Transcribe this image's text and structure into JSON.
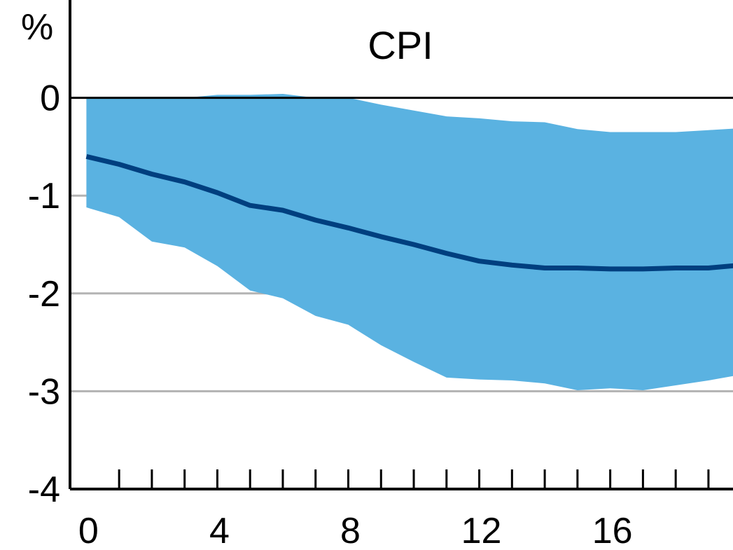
{
  "chart_data": {
    "type": "line",
    "title": "CPI",
    "ylabel": "%",
    "xlabel": "",
    "xlim": [
      -0.5,
      19.75
    ],
    "ylim": [
      -4,
      1
    ],
    "x_ticks": [
      0,
      4,
      8,
      12,
      16
    ],
    "x_minor_ticks": [
      1,
      2,
      3,
      4,
      5,
      6,
      7,
      8,
      9,
      10,
      11,
      12,
      13,
      14,
      15,
      16,
      17,
      18,
      19
    ],
    "y_ticks": [
      0,
      -1,
      -2,
      -3,
      -4
    ],
    "grid": "horizontal",
    "x": [
      0,
      1,
      2,
      3,
      4,
      5,
      6,
      7,
      8,
      9,
      10,
      11,
      12,
      13,
      14,
      15,
      16,
      17,
      18,
      19,
      20
    ],
    "series": [
      {
        "type": "line",
        "values": [
          -0.6,
          -0.68,
          -0.78,
          -0.86,
          -0.97,
          -1.1,
          -1.15,
          -1.25,
          -1.33,
          -1.42,
          -1.5,
          -1.59,
          -1.67,
          -1.71,
          -1.74,
          -1.74,
          -1.75,
          -1.75,
          -1.74,
          -1.74,
          -1.71
        ]
      },
      {
        "type": "band",
        "upper": [
          0.0,
          0.0,
          0.0,
          0.0,
          0.03,
          0.03,
          0.04,
          0.0,
          0.0,
          -0.07,
          -0.13,
          -0.19,
          -0.21,
          -0.24,
          -0.25,
          -0.32,
          -0.35,
          -0.35,
          -0.35,
          -0.33,
          -0.31
        ],
        "lower": [
          -1.12,
          -1.22,
          -1.47,
          -1.53,
          -1.72,
          -1.97,
          -2.05,
          -2.23,
          -2.32,
          -2.53,
          -2.7,
          -2.86,
          -2.88,
          -2.89,
          -2.92,
          -2.99,
          -2.97,
          -2.99,
          -2.94,
          -2.89,
          -2.83
        ]
      }
    ],
    "colors": {
      "line": "#003f7f",
      "band": "#5ab2e1",
      "grid": "#b3b3b3",
      "axis": "#000000"
    }
  }
}
